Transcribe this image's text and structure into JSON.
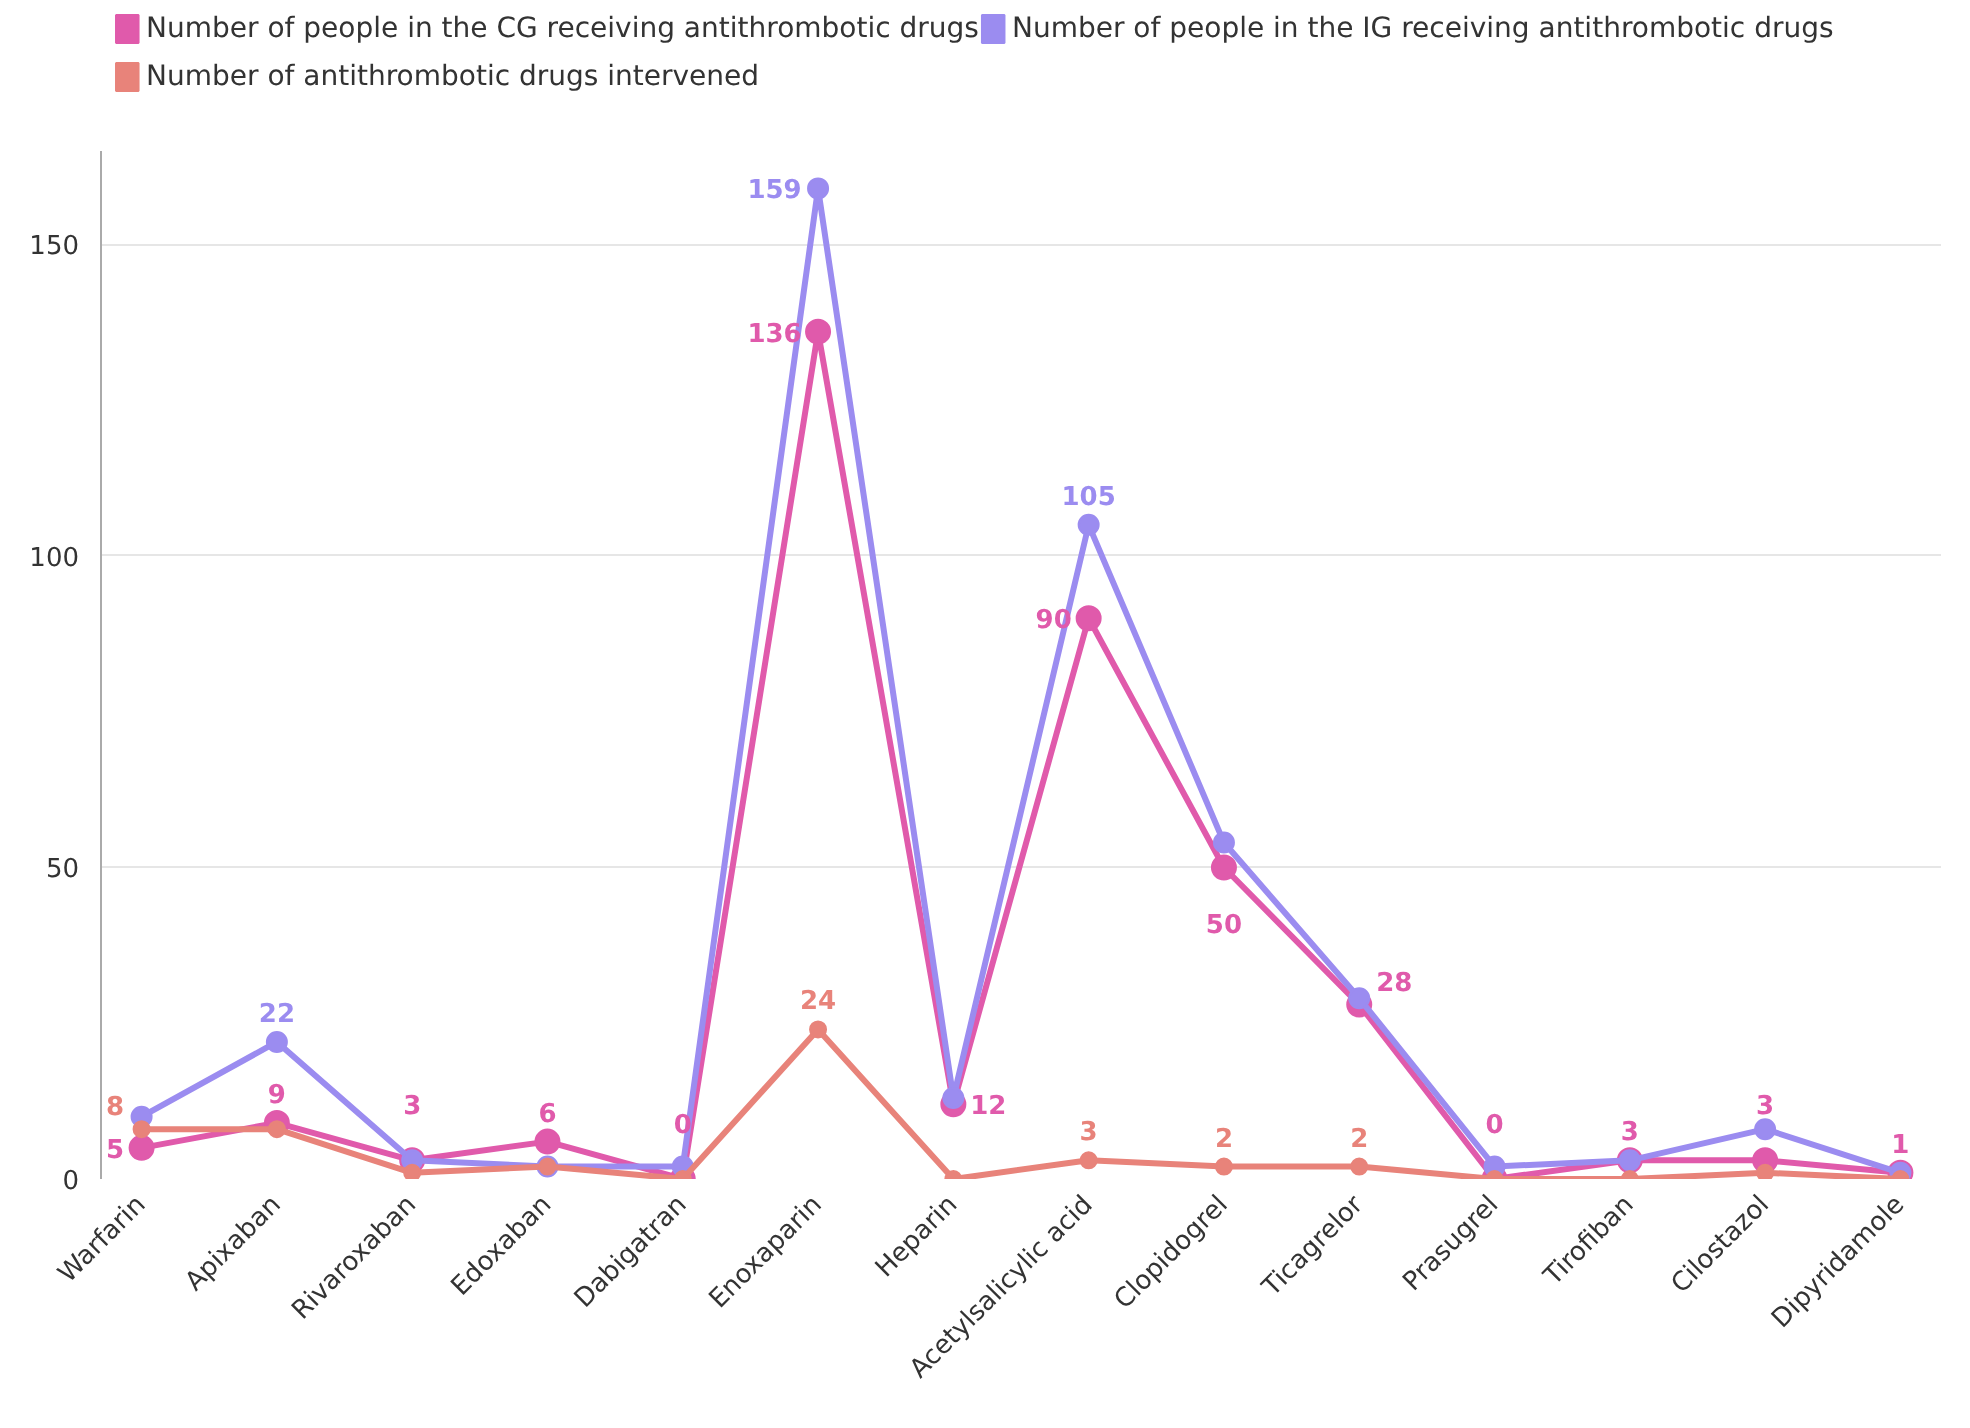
{
  "chart_data": {
    "type": "line",
    "categories": [
      "Warfarin",
      "Apixaban",
      "Rivaroxaban",
      "Edoxaban",
      "Dabigatran",
      "Enoxaparin",
      "Heparin",
      "Acetylsalicylic acid",
      "Clopidogrel",
      "Ticagrelor",
      "Prasugrel",
      "Tirofiban",
      "Cilostazol",
      "Dipyridamole"
    ],
    "series": [
      {
        "name": "Number of people in the CG receiving antithrombotic drugs",
        "color": "#e05aab",
        "values": [
          5,
          9,
          3,
          6,
          0,
          136,
          12,
          90,
          50,
          28,
          0,
          3,
          3,
          1
        ],
        "value_labels": [
          "5",
          "9",
          "3",
          "6",
          "0",
          "136",
          "12",
          "90",
          "50",
          "28",
          "0",
          "3",
          "3",
          "1"
        ]
      },
      {
        "name": "Number of people in the IG receiving antithrombotic drugs",
        "color": "#9b8cf0",
        "values": [
          10,
          22,
          3,
          2,
          2,
          159,
          13,
          105,
          54,
          29,
          2,
          3,
          8,
          1
        ],
        "value_labels": [
          null,
          "22",
          null,
          null,
          null,
          "159",
          null,
          "105",
          null,
          null,
          null,
          null,
          null,
          null
        ]
      },
      {
        "name": "Number of antithrombotic drugs intervened",
        "color": "#e8837a",
        "values": [
          8,
          8,
          1,
          2,
          0,
          24,
          0,
          3,
          2,
          2,
          0,
          0,
          1,
          0
        ],
        "value_labels": [
          "8",
          null,
          null,
          null,
          null,
          "24",
          null,
          "3",
          "2",
          "2",
          null,
          null,
          null,
          null
        ]
      }
    ],
    "ylim": [
      0,
      165
    ],
    "yticks": [
      0,
      50,
      100,
      150
    ],
    "grid": "y",
    "legend": "top",
    "marker": "circle",
    "line_style": "solid"
  }
}
